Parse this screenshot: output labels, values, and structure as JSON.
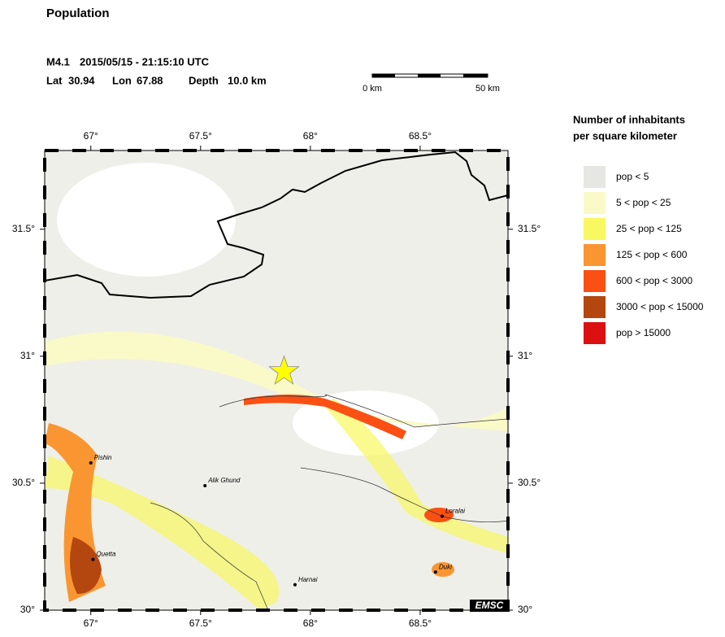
{
  "title": "Population",
  "event": {
    "magnitude": "M4.1",
    "datetime": "2015/05/15 - 21:15:10 UTC",
    "lat_label": "Lat",
    "lat": 30.94,
    "lon_label": "Lon",
    "lon": 67.88,
    "depth_label": "Depth",
    "depth": "10.0 km"
  },
  "scale_bar": {
    "start": "0 km",
    "end": "50 km"
  },
  "map": {
    "xlim": [
      66.79,
      68.9
    ],
    "ylim": [
      30,
      31.81
    ],
    "xticks": [
      {
        "value": 67,
        "label": "67°"
      },
      {
        "value": 67.5,
        "label": "67.5°"
      },
      {
        "value": 68,
        "label": "68°"
      },
      {
        "value": 68.5,
        "label": "68.5°"
      }
    ],
    "yticks": [
      {
        "value": 30,
        "label": "30°"
      },
      {
        "value": 30.5,
        "label": "30.5°"
      },
      {
        "value": 31,
        "label": "31°"
      },
      {
        "value": 31.5,
        "label": "31.5°"
      }
    ]
  },
  "cities": [
    {
      "name": "Pishin",
      "lat": 30.58,
      "lon": 67.0
    },
    {
      "name": "Alik Ghund",
      "lat": 30.49,
      "lon": 67.52
    },
    {
      "name": "Quetta",
      "lat": 30.2,
      "lon": 67.01
    },
    {
      "name": "Harnai",
      "lat": 30.1,
      "lon": 67.93
    },
    {
      "name": "Loralai",
      "lat": 30.37,
      "lon": 68.6
    },
    {
      "name": "Duki",
      "lat": 30.15,
      "lon": 68.57
    }
  ],
  "legend": {
    "title_lines": [
      "Number of inhabitants",
      "per square kilometer"
    ],
    "items": [
      {
        "label": "pop < 5",
        "color": "#e6e6e2"
      },
      {
        "label": "5 < pop < 25",
        "color": "#fafac8"
      },
      {
        "label": "25 < pop < 125",
        "color": "#f8f860"
      },
      {
        "label": "125 < pop < 600",
        "color": "#fa9632"
      },
      {
        "label": "600 < pop < 3000",
        "color": "#fa5014"
      },
      {
        "label": "3000 < pop < 15000",
        "color": "#b4460f"
      },
      {
        "label": "pop > 15000",
        "color": "#dc1010"
      }
    ]
  },
  "credit": "EMSC"
}
